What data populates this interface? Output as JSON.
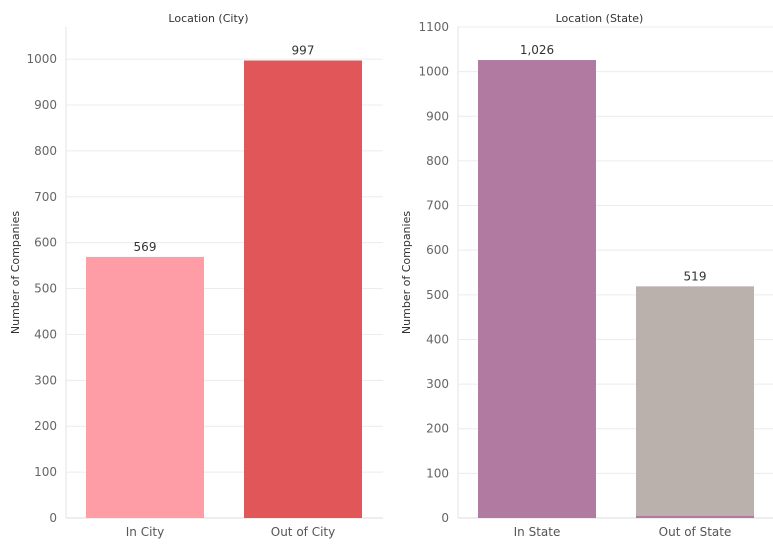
{
  "chart_data": [
    {
      "type": "bar",
      "title": "Location (City)",
      "xlabel": "",
      "ylabel": "Number of Companies",
      "ylim": [
        0,
        1070
      ],
      "yticks": [
        0,
        100,
        200,
        300,
        400,
        500,
        600,
        700,
        800,
        900,
        1000
      ],
      "grid": true,
      "categories": [
        "In City",
        "Out of City"
      ],
      "values": [
        569,
        997
      ],
      "value_labels": [
        "569",
        "997"
      ],
      "colors": [
        "#ff9da7",
        "#e15759"
      ]
    },
    {
      "type": "bar",
      "title": "Location (State)",
      "xlabel": "",
      "ylabel": "Number of Companies",
      "ylim": [
        0,
        1100
      ],
      "yticks": [
        0,
        100,
        200,
        300,
        400,
        500,
        600,
        700,
        800,
        900,
        1000,
        1100
      ],
      "grid": true,
      "categories": [
        "In State",
        "Out of State"
      ],
      "values": [
        1026,
        519
      ],
      "value_labels": [
        "1,026",
        "519"
      ],
      "colors": [
        "#b07aa1",
        "#bab0ac"
      ]
    }
  ]
}
